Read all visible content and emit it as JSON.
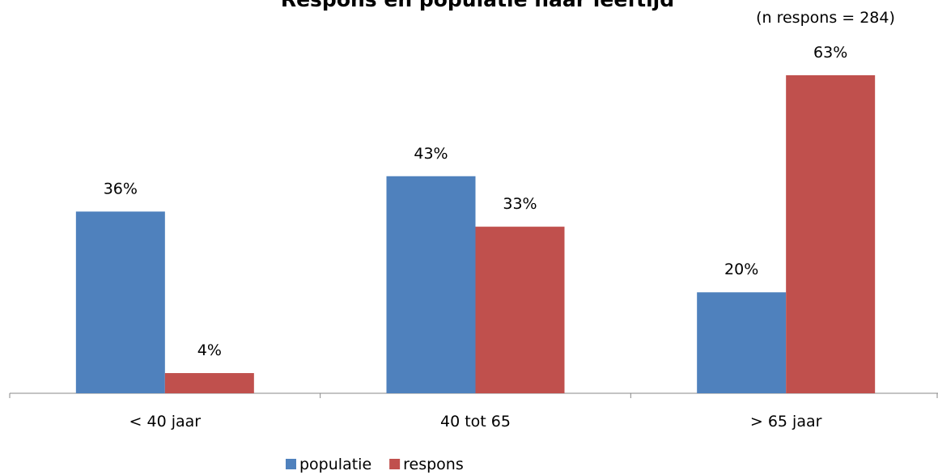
{
  "chart_data": {
    "type": "bar",
    "title": "Respons en populatie naar leeftijd",
    "annotation": "(n respons = 284)",
    "categories": [
      "< 40 jaar",
      "40 tot 65",
      "> 65 jaar"
    ],
    "series": [
      {
        "name": "populatie",
        "color": "#4f81bd",
        "values": [
          36,
          43,
          20
        ],
        "value_labels": [
          "36%",
          "43%",
          "20%"
        ]
      },
      {
        "name": "respons",
        "color": "#c0504d",
        "values": [
          4,
          33,
          63
        ],
        "value_labels": [
          "4%",
          "33%",
          "63%"
        ]
      }
    ],
    "legend": "bottom"
  }
}
